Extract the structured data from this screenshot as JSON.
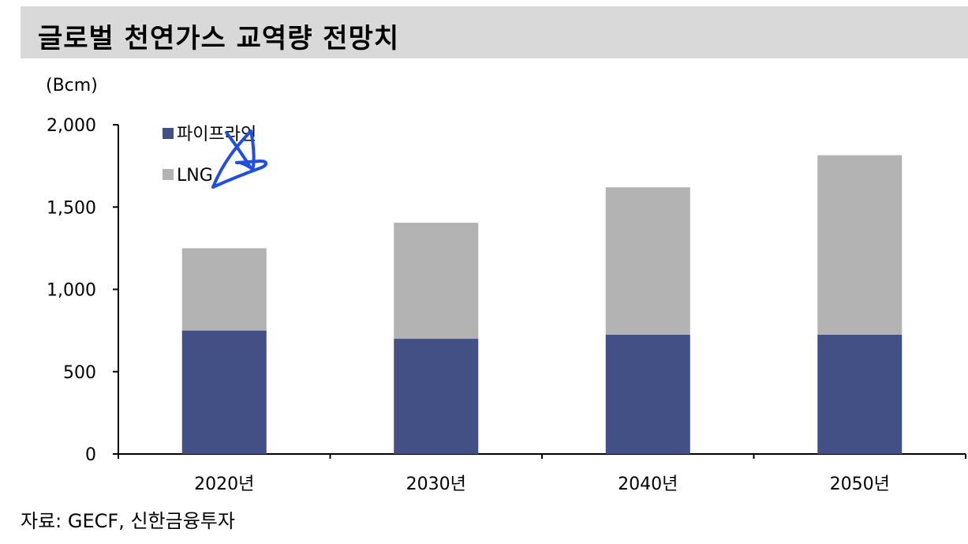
{
  "header": {
    "title": "글로벌 천연가스 교역량 전망치"
  },
  "unit_label": "(Bcm)",
  "source": "자료: GECF, 신한금융투자",
  "colors": {
    "pipeline": "#425086",
    "lng": "#b3b3b3",
    "annotation": "#1f4fe0"
  },
  "chart_data": {
    "type": "bar",
    "stacked": true,
    "title": "글로벌 천연가스 교역량 전망치",
    "ylabel": "(Bcm)",
    "xlabel": "",
    "categories": [
      "2020년",
      "2030년",
      "2040년",
      "2050년"
    ],
    "series": [
      {
        "name": "파이프라인",
        "values": [
          750,
          700,
          725,
          725
        ]
      },
      {
        "name": "LNG",
        "values": [
          500,
          705,
          895,
          1090
        ]
      }
    ],
    "ylim": [
      0,
      2000
    ],
    "yticks": [
      "0",
      "500",
      "1,000",
      "1,500",
      "2,000"
    ],
    "ytick_values": [
      0,
      500,
      1000,
      1500,
      2000
    ],
    "grid": false,
    "legend": "top-left"
  }
}
